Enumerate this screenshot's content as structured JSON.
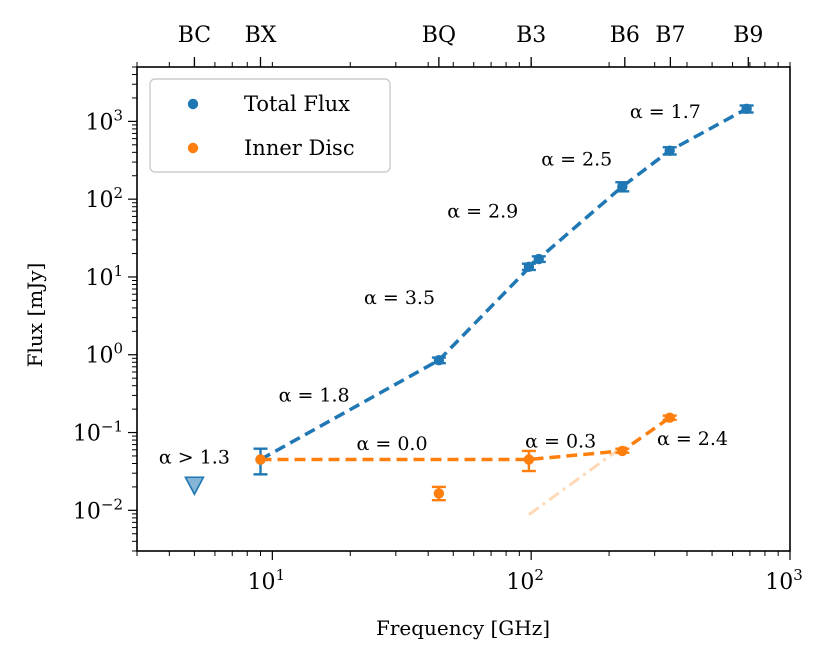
{
  "chart_data": {
    "type": "scatter",
    "xscale": "log",
    "yscale": "log",
    "xlim": [
      3,
      1000
    ],
    "ylim": [
      0.003,
      5000
    ],
    "xlabel": "Frequency [GHz]",
    "ylabel": "Flux [mJy]",
    "x_ticks": [
      {
        "value": 10,
        "base": "10",
        "exp": "1"
      },
      {
        "value": 100,
        "base": "10",
        "exp": "2"
      },
      {
        "value": 1000,
        "base": "10",
        "exp": "3"
      }
    ],
    "y_ticks": [
      {
        "value": 0.01,
        "base": "10",
        "exp": "−2"
      },
      {
        "value": 0.1,
        "base": "10",
        "exp": "−1"
      },
      {
        "value": 1,
        "base": "10",
        "exp": "0"
      },
      {
        "value": 10,
        "base": "10",
        "exp": "1"
      },
      {
        "value": 100,
        "base": "10",
        "exp": "2"
      },
      {
        "value": 1000,
        "base": "10",
        "exp": "3"
      }
    ],
    "top_axis_bands": [
      {
        "label": "BC",
        "freq": 5
      },
      {
        "label": "BX",
        "freq": 9
      },
      {
        "label": "BQ",
        "freq": 44
      },
      {
        "label": "B3",
        "freq": 100
      },
      {
        "label": "B6",
        "freq": 230
      },
      {
        "label": "B7",
        "freq": 345
      },
      {
        "label": "B9",
        "freq": 690
      }
    ],
    "legend": {
      "position": "top-left",
      "entries": [
        {
          "label": "Total Flux",
          "color": "#1f77b4"
        },
        {
          "label": "Inner Disc",
          "color": "#ff7f0e"
        }
      ]
    },
    "series": [
      {
        "name": "Total Flux",
        "color": "#1f77b4",
        "points": [
          {
            "x": 9,
            "y": 0.045,
            "lo": 0.029,
            "hi": 0.062
          },
          {
            "x": 44,
            "y": 0.85,
            "lo": 0.78,
            "hi": 0.92
          },
          {
            "x": 98,
            "y": 13.5,
            "lo": 12.3,
            "hi": 14.8
          },
          {
            "x": 107,
            "y": 17,
            "lo": 15.6,
            "hi": 18.4
          },
          {
            "x": 225,
            "y": 145,
            "lo": 126,
            "hi": 165
          },
          {
            "x": 343,
            "y": 420,
            "lo": 375,
            "hi": 465
          },
          {
            "x": 680,
            "y": 1450,
            "lo": 1300,
            "hi": 1600
          }
        ],
        "fit_line": [
          {
            "x": 9,
            "y": 0.045
          },
          {
            "x": 44,
            "y": 0.85
          },
          {
            "x": 102,
            "y": 15
          },
          {
            "x": 225,
            "y": 145
          },
          {
            "x": 343,
            "y": 420
          },
          {
            "x": 680,
            "y": 1450
          }
        ]
      },
      {
        "name": "Inner Disc",
        "color": "#ff7f0e",
        "points": [
          {
            "x": 9,
            "y": 0.045,
            "lo": 0.045,
            "hi": 0.045
          },
          {
            "x": 44,
            "y": 0.0165,
            "lo": 0.0135,
            "hi": 0.02
          },
          {
            "x": 98,
            "y": 0.045,
            "lo": 0.032,
            "hi": 0.058
          },
          {
            "x": 225,
            "y": 0.058,
            "lo": 0.055,
            "hi": 0.062
          },
          {
            "x": 343,
            "y": 0.155,
            "lo": 0.146,
            "hi": 0.165
          }
        ],
        "fit_line": [
          {
            "x": 9,
            "y": 0.045
          },
          {
            "x": 98,
            "y": 0.045
          },
          {
            "x": 225,
            "y": 0.058
          },
          {
            "x": 343,
            "y": 0.155
          }
        ],
        "extrapolation": [
          {
            "x": 98,
            "y": 0.0088
          },
          {
            "x": 225,
            "y": 0.0655
          }
        ]
      }
    ],
    "upper_limit": {
      "x": 5,
      "y": 0.021,
      "color": "#1f77b4"
    },
    "annotations": [
      {
        "text": "α = 1.7",
        "x": 330,
        "y": 1100
      },
      {
        "text": "α = 2.5",
        "x": 150,
        "y": 270
      },
      {
        "text": "α = 2.9",
        "x": 65,
        "y": 58
      },
      {
        "text": "α = 3.5",
        "x": 31,
        "y": 4.5
      },
      {
        "text": "α = 1.8",
        "x": 14.5,
        "y": 0.25
      },
      {
        "text": "α > 1.3",
        "x": 5,
        "y": 0.04
      },
      {
        "text": "α = 0.0",
        "x": 29,
        "y": 0.06
      },
      {
        "text": "α = 0.3",
        "x": 130,
        "y": 0.064
      },
      {
        "text": "α = 2.4",
        "x": 420,
        "y": 0.069
      }
    ]
  }
}
